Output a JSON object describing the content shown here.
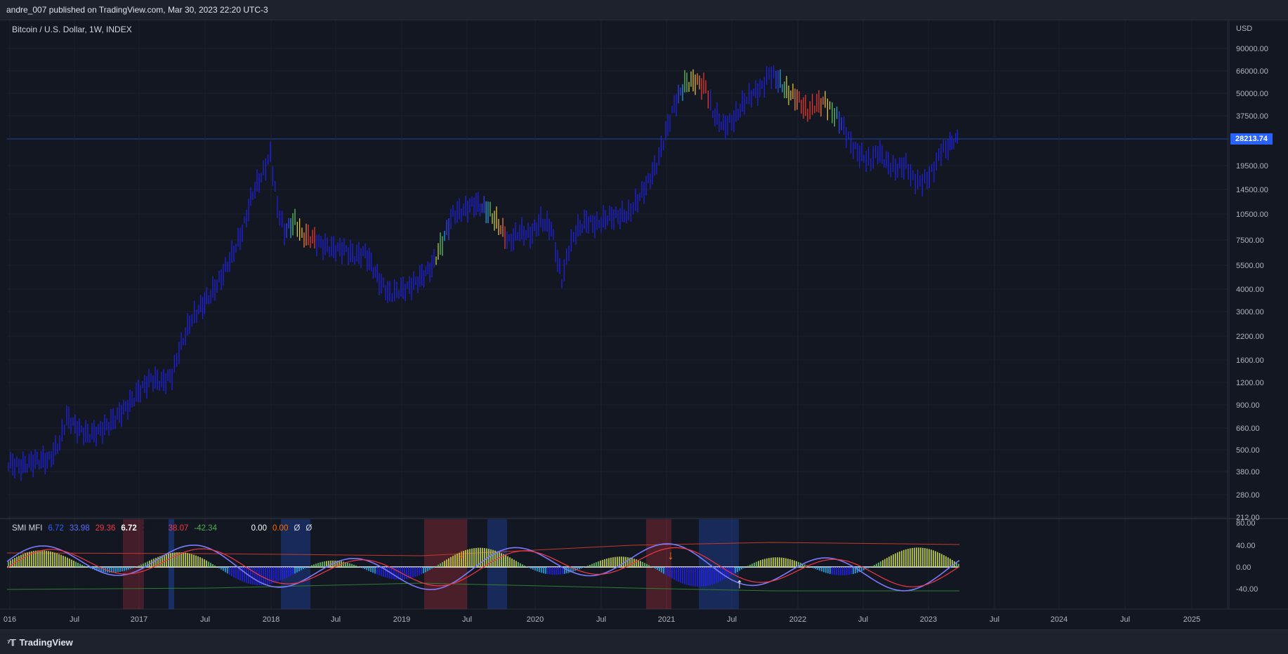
{
  "header": {
    "published_text": "andre_007 published on TradingView.com, Mar 30, 2023 22:20 UTC-3"
  },
  "chart": {
    "symbol_title": "Bitcoin / U.S. Dollar, 1W, INDEX",
    "currency": "USD",
    "last_price": "28213.74",
    "price_labels": [
      "90000.00",
      "66000.00",
      "50000.00",
      "37500.00",
      "19500.00",
      "14500.00",
      "10500.00",
      "7500.00",
      "5500.00",
      "4000.00",
      "3000.00",
      "2200.00",
      "1600.00",
      "1200.00",
      "900.00",
      "660.00",
      "500.00",
      "380.00",
      "280.00",
      "212.00"
    ],
    "time_labels": [
      "016",
      "Jul",
      "2017",
      "Jul",
      "2018",
      "Jul",
      "2019",
      "Jul",
      "2020",
      "Jul",
      "2021",
      "Jul",
      "2022",
      "Jul",
      "2023",
      "Jul",
      "2024",
      "Jul",
      "2025"
    ],
    "colors": {
      "background": "#131722",
      "price_line": "#2962ff",
      "bullish": "#2222ee",
      "hot": "#ff3b30",
      "cool": "#8bc34a"
    }
  },
  "indicator": {
    "name": "SMI MFI",
    "values": [
      {
        "text": "6.72",
        "color": "#2962ff"
      },
      {
        "text": "33.98",
        "color": "#5b6cff"
      },
      {
        "text": "29.36",
        "color": "#f23645"
      },
      {
        "text": "6.72",
        "color": "#ffffff"
      },
      {
        "text": "38.07",
        "color": "#131722"
      },
      {
        "text": "38.07",
        "color": "#f23645"
      },
      {
        "text": "-42.34",
        "color": "#4caf50"
      },
      {
        "text": "-42.34",
        "color": "#131722"
      },
      {
        "text": "0.00",
        "color": "#ffffff"
      },
      {
        "text": "0.00",
        "color": "#ff6d00"
      },
      {
        "text": "Ø",
        "color": "#d1d4dc"
      },
      {
        "text": "Ø",
        "color": "#d1d4dc"
      }
    ],
    "axis_labels": [
      "80.00",
      "40.00",
      "0.00",
      "-40.00"
    ]
  },
  "footer": {
    "brand": "TradingView"
  }
}
